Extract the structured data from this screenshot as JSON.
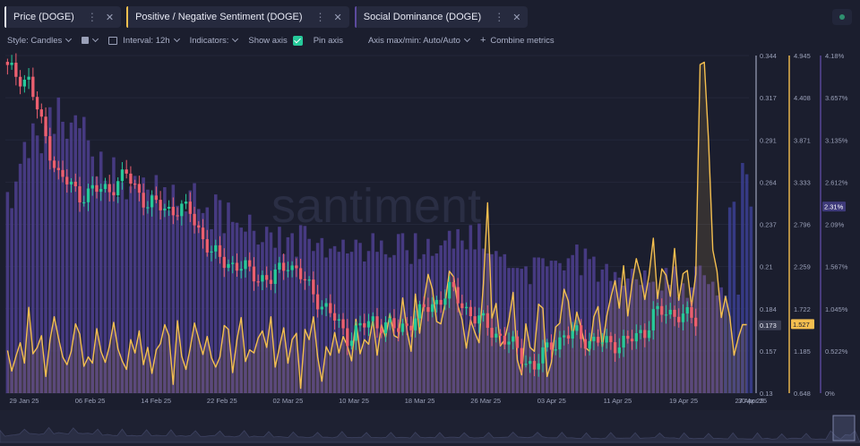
{
  "tabs": [
    {
      "label": "Price (DOGE)",
      "color": "#e6e8f2"
    },
    {
      "label": "Positive / Negative Sentiment (DOGE)",
      "color": "#f4bf4f"
    },
    {
      "label": "Social Dominance (DOGE)",
      "color": "#5c4a9e"
    }
  ],
  "toolbar": {
    "style": "Style: Candles",
    "interval": "Interval: 12h",
    "indicators": "Indicators:",
    "show_axis": "Show axis",
    "pin_axis": "Pin axis",
    "axis_minmax": "Axis max/min: Auto/Auto",
    "combine": "Combine metrics"
  },
  "watermark": "santiment",
  "colors": {
    "up": "#26c99a",
    "down": "#ec5f6f",
    "sentiment": "#f4bf4f",
    "dominance": "#4e3f8f",
    "dominance_last": "#3b3f93"
  },
  "chart_data": {
    "type": "candlestick+line+bar",
    "x_ticks": [
      "29 Jan 25",
      "06 Feb 25",
      "14 Feb 25",
      "22 Feb 25",
      "02 Mar 25",
      "10 Mar 25",
      "18 Mar 25",
      "26 Mar 25",
      "03 Apr 25",
      "11 Apr 25",
      "19 Apr 25",
      "27 Apr 25",
      "30 Apr 25"
    ],
    "axes": {
      "price": {
        "ticks": [
          "0.344",
          "0.317",
          "0.291",
          "0.264",
          "0.237",
          "0.21",
          "0.184",
          "0.157",
          "0.13"
        ],
        "range": [
          0.13,
          0.344
        ],
        "last": "0.173"
      },
      "sentiment": {
        "ticks": [
          "4.945",
          "4.408",
          "3.871",
          "3.333",
          "2.796",
          "2.259",
          "1.722",
          "1.185",
          "0.648"
        ],
        "range": [
          0.648,
          4.945
        ],
        "last": "1.527"
      },
      "dominance": {
        "ticks": [
          "4.18%",
          "3.657%",
          "3.135%",
          "2.612%",
          "2.09%",
          "1.567%",
          "1.045%",
          "0.522%",
          "0%"
        ],
        "range": [
          0,
          4.18
        ],
        "last": "2.31%"
      }
    },
    "price_anchors": [
      [
        0,
        0.335
      ],
      [
        5,
        0.328
      ],
      [
        8,
        0.3
      ],
      [
        12,
        0.268
      ],
      [
        17,
        0.256
      ],
      [
        24,
        0.26
      ],
      [
        28,
        0.268
      ],
      [
        33,
        0.25
      ],
      [
        38,
        0.247
      ],
      [
        43,
        0.245
      ],
      [
        48,
        0.218
      ],
      [
        56,
        0.208
      ],
      [
        62,
        0.201
      ],
      [
        66,
        0.214
      ],
      [
        70,
        0.2
      ],
      [
        76,
        0.18
      ],
      [
        80,
        0.166
      ],
      [
        86,
        0.176
      ],
      [
        92,
        0.17
      ],
      [
        98,
        0.182
      ],
      [
        104,
        0.195
      ],
      [
        110,
        0.178
      ],
      [
        114,
        0.17
      ],
      [
        118,
        0.162
      ],
      [
        124,
        0.146
      ],
      [
        128,
        0.162
      ],
      [
        134,
        0.168
      ],
      [
        138,
        0.162
      ],
      [
        146,
        0.162
      ],
      [
        150,
        0.17
      ],
      [
        152,
        0.18
      ],
      [
        158,
        0.181
      ],
      [
        162,
        0.175
      ]
    ],
    "sentiment_values": [
      1.19,
      0.93,
      1.12,
      1.29,
      1.03,
      1.74,
      1.15,
      1.23,
      1.38,
      0.86,
      1.32,
      1.62,
      1.35,
      1.11,
      1.01,
      1.18,
      1.53,
      1.4,
      0.99,
      1.11,
      1.03,
      1.47,
      1.18,
      1.04,
      1.25,
      1.55,
      1.21,
      1.06,
      0.95,
      1.33,
      1.16,
      1.44,
      1.01,
      1.23,
      0.9,
      1.2,
      1.28,
      1.52,
      1.38,
      0.76,
      1.57,
      1.12,
      0.95,
      1.22,
      1.54,
      1.34,
      1.14,
      1.37,
      1.1,
      0.98,
      1.11,
      1.51,
      1.46,
      0.91,
      1.33,
      1.61,
      1.05,
      1.2,
      1.16,
      1.35,
      1.44,
      1.23,
      1.62,
      0.98,
      1.23,
      1.48,
      1.03,
      1.33,
      1.41,
      0.71,
      1.46,
      1.33,
      1.62,
      1.11,
      0.8,
      1.24,
      1.13,
      1.42,
      1.16,
      1.37,
      1.25,
      1.06,
      1.59,
      1.15,
      1.33,
      1.27,
      1.59,
      1.13,
      1.52,
      1.36,
      1.66,
      1.38,
      1.35,
      1.86,
      1.45,
      1.18,
      1.91,
      1.41,
      1.82,
      2.16,
      1.97,
      1.56,
      1.53,
      1.79,
      2.2,
      2.13,
      1.76,
      1.58,
      1.22,
      1.58,
      1.42,
      1.29,
      2.04,
      3.07,
      1.6,
      1.79,
      1.25,
      1.33,
      1.57,
      1.93,
      1.07,
      0.88,
      1.53,
      1.23,
      1.18,
      1.78,
      1.73,
      0.86,
      1.04,
      1.49,
      1.54,
      1.97,
      1.82,
      1.36,
      1.68,
      1.48,
      1.23,
      1.18,
      1.62,
      1.75,
      1.24,
      1.62,
      1.87,
      2.08,
      1.73,
      2.27,
      1.63,
      2.05,
      2.36,
      2.15,
      1.84,
      2.15,
      2.62,
      1.85,
      2.23,
      2.15,
      1.88,
      2.49,
      1.83,
      2.17,
      2.21,
      1.75,
      2.16,
      4.83,
      4.86,
      3.87,
      2.47,
      2.2,
      1.61,
      1.88,
      1.62,
      1.13,
      1.35,
      1.52,
      1.52
    ],
    "dominance_values": [
      2.49,
      2.29,
      2.62,
      2.84,
      3.11,
      2.91,
      3.34,
      3.19,
      2.97,
      3.31,
      3.54,
      3.21,
      3.66,
      3.36,
      3.15,
      3.35,
      3.44,
      3.28,
      3.42,
      3.13,
      2.93,
      2.68,
      2.99,
      2.63,
      2.55,
      2.92,
      2.43,
      2.61,
      2.4,
      2.56,
      2.69,
      2.48,
      2.67,
      2.52,
      2.46,
      2.7,
      2.3,
      2.55,
      2.26,
      2.58,
      2.32,
      2.28,
      2.25,
      2.51,
      2.6,
      2.28,
      2.23,
      2.3,
      2.03,
      2.46,
      2.39,
      1.98,
      2.36,
      2.12,
      2.11,
      2.05,
      2.0,
      2.21,
      2.01,
      1.84,
      1.87,
      2.06,
      1.99,
      1.8,
      2.06,
      1.72,
      1.93,
      1.98,
      1.69,
      2.08,
      2.07,
      1.91,
      1.76,
      1.86,
      1.92,
      1.68,
      1.79,
      1.82,
      1.75,
      1.9,
      1.73,
      1.75,
      1.9,
      1.86,
      1.63,
      1.76,
      1.98,
      1.75,
      1.89,
      1.72,
      1.68,
      1.71,
      1.97,
      1.98,
      1.77,
      1.6,
      1.98,
      1.66,
      1.72,
      1.91,
      1.7,
      1.73,
      1.83,
      1.89,
      2.01,
      1.79,
      2.03,
      1.89,
      1.78,
      2.08,
      1.78,
      2.1,
      1.79,
      1.73,
      1.72,
      1.76,
      1.69,
      1.72,
      1.55,
      1.55,
      1.55,
      1.54,
      1.57,
      1.35,
      1.68,
      1.68,
      1.67,
      1.57,
      1.64,
      1.64,
      1.61,
      1.52,
      1.67,
      1.71,
      1.84,
      1.46,
      1.79,
      1.66,
      1.69,
      1.38,
      1.53,
      1.6,
      1.39,
      1.5,
      1.43,
      1.33,
      1.42,
      1.54,
      1.41,
      1.34,
      1.52,
      1.37,
      1.38,
      1.28,
      1.27,
      1.55,
      1.34,
      1.57,
      1.19,
      1.36,
      1.18,
      1.31,
      1.57,
      1.58,
      1.46,
      1.35,
      1.38,
      1.21,
      1.31,
      1.21,
      2.3,
      2.37,
      1.22,
      2.85,
      2.71,
      2.31
    ]
  }
}
